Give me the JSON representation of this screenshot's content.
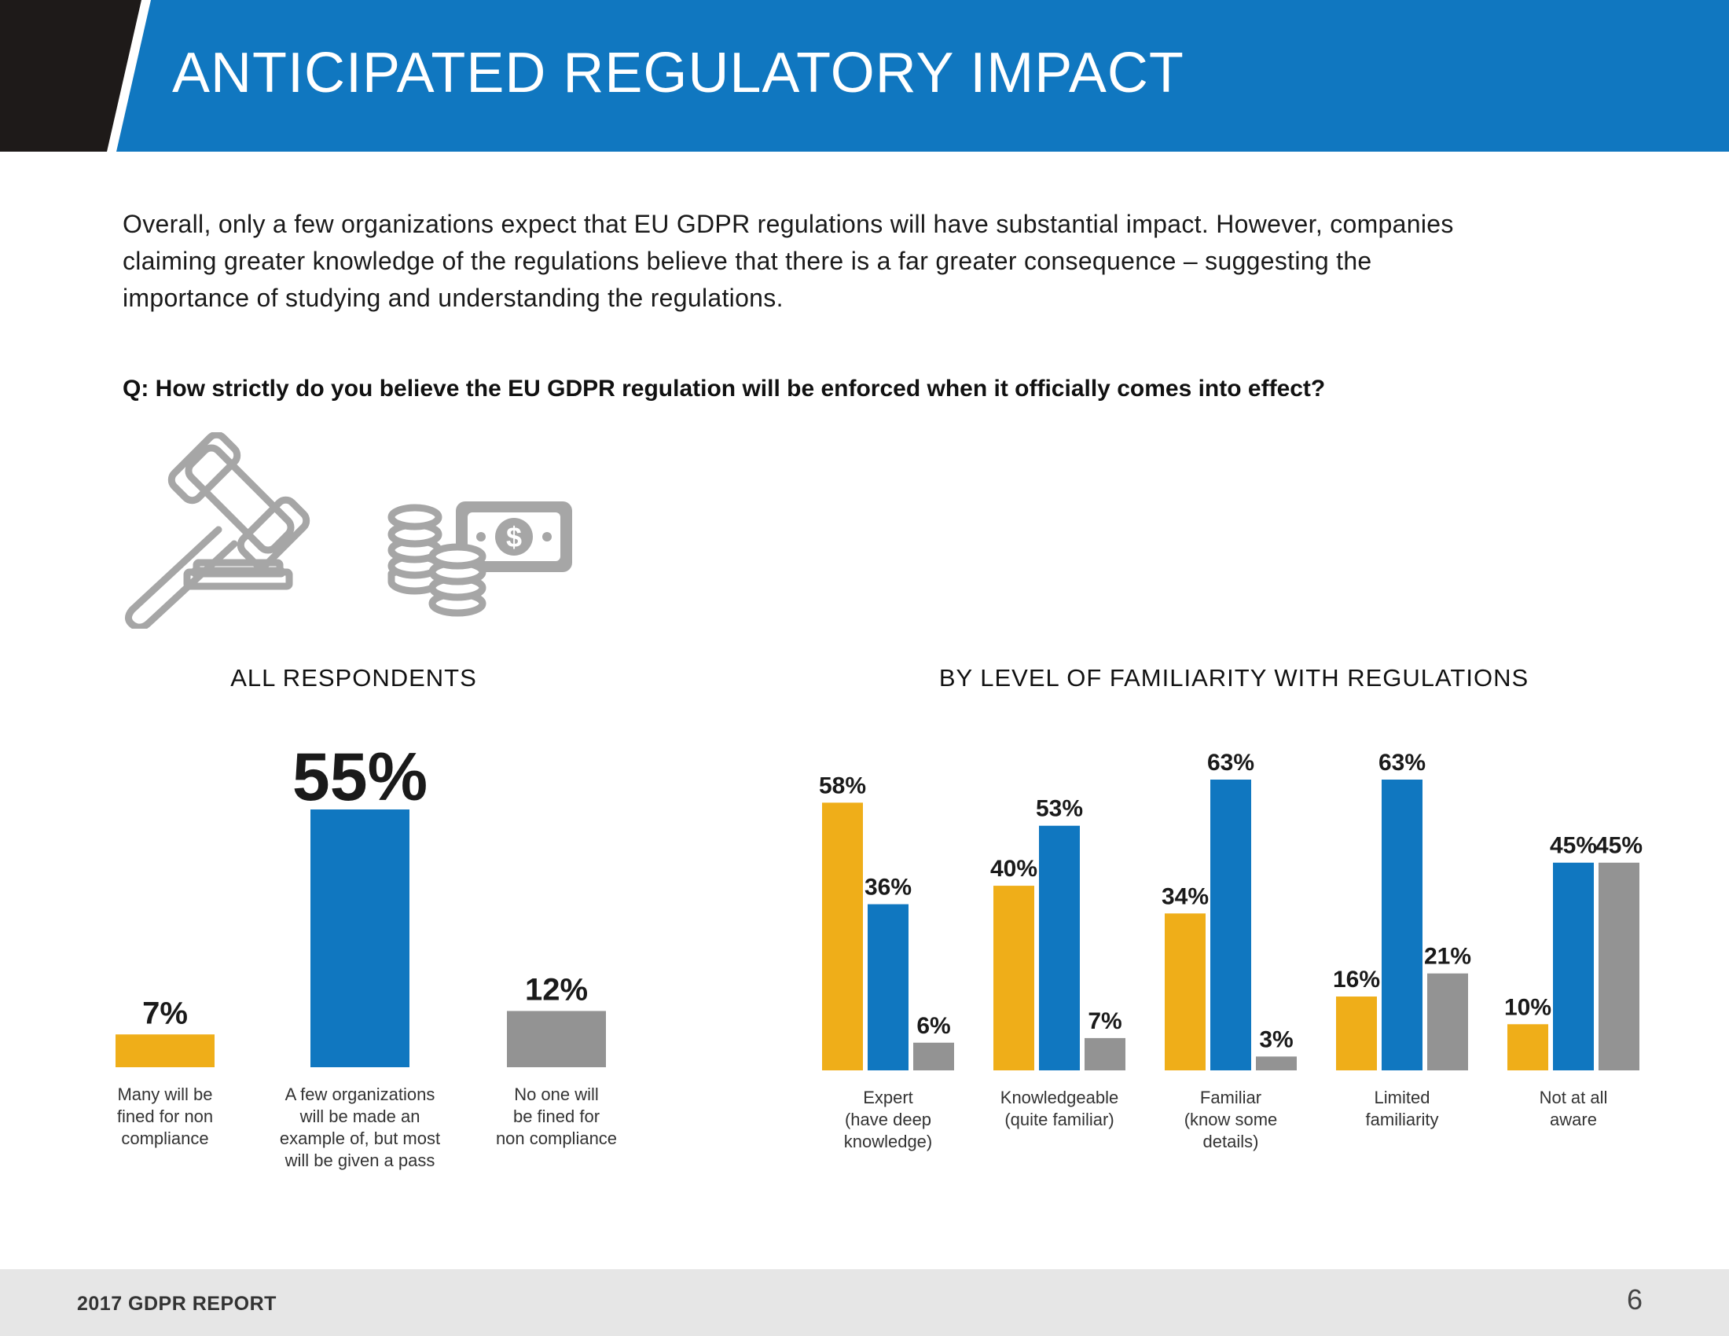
{
  "header": {
    "title": "ANTICIPATED REGULATORY IMPACT",
    "dark_color": "#1e1a19",
    "blue_color": "#1077c0"
  },
  "intro": {
    "line1": "Overall, only a few organizations expect that EU GDPR regulations will have substantial impact. However, companies",
    "line2": "claiming greater knowledge of the regulations believe that there is a far greater consequence – suggesting the",
    "line3": "importance of studying and understanding the regulations."
  },
  "question": "Q: How strictly do you believe the EU GDPR regulation will be enforced when it officially comes into effect?",
  "icons": [
    "gavel-icon",
    "money-icon"
  ],
  "colors": {
    "yellow": "#efae19",
    "blue": "#1077c0",
    "gray": "#939393"
  },
  "chart_data": [
    {
      "type": "bar",
      "title": "ALL RESPONDENTS",
      "categories": [
        [
          "Many will be",
          "fined for non",
          "compliance"
        ],
        [
          "A few organizations",
          "will be made an",
          "example of, but most",
          "will be given a pass"
        ],
        [
          "No one will",
          "be fined for",
          "non compliance"
        ]
      ],
      "values": [
        7,
        55,
        12
      ],
      "value_labels": [
        "7%",
        "55%",
        "12%"
      ],
      "colors": [
        "#efae19",
        "#1077c0",
        "#939393"
      ],
      "ylim": [
        0,
        55
      ]
    },
    {
      "type": "bar",
      "title": "BY LEVEL OF FAMILIARITY WITH REGULATIONS",
      "categories": [
        [
          "Expert",
          "(have deep",
          "knowledge)"
        ],
        [
          "Knowledgeable",
          "(quite familiar)"
        ],
        [
          "Familiar",
          "(know some",
          "details)"
        ],
        [
          "Limited",
          "familiarity"
        ],
        [
          "Not at all",
          "aware"
        ]
      ],
      "series": [
        {
          "color": "#efae19",
          "values": [
            58,
            40,
            34,
            16,
            10
          ],
          "labels": [
            "58%",
            "40%",
            "34%",
            "16%",
            "10%"
          ]
        },
        {
          "color": "#1077c0",
          "values": [
            36,
            53,
            63,
            63,
            45
          ],
          "labels": [
            "36%",
            "53%",
            "63%",
            "63%",
            "45%"
          ]
        },
        {
          "color": "#939393",
          "values": [
            6,
            7,
            3,
            21,
            45
          ],
          "labels": [
            "6%",
            "7%",
            "3%",
            "21%",
            "45%"
          ]
        }
      ],
      "ylim": [
        0,
        63
      ]
    }
  ],
  "footer": {
    "title": "2017 GDPR REPORT",
    "page_number": "6"
  }
}
